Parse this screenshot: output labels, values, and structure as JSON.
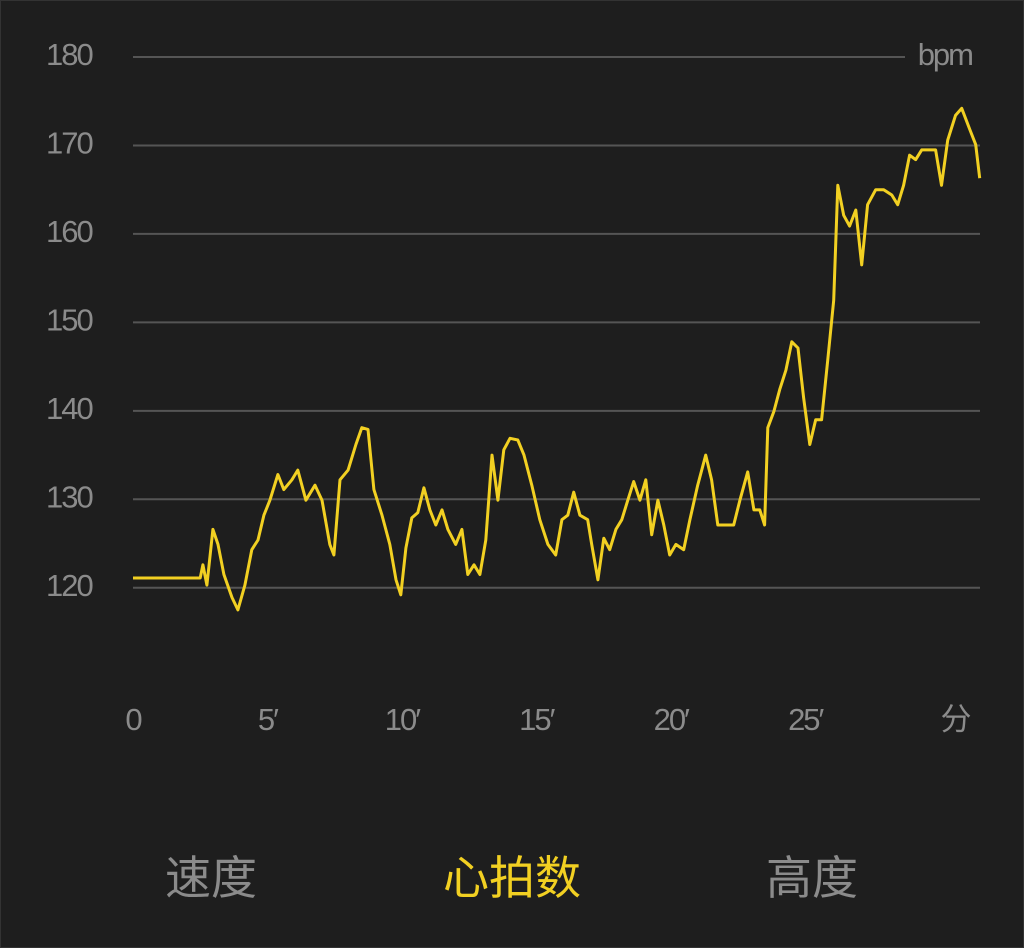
{
  "chart_data": {
    "type": "line",
    "color": "#f2d022",
    "y_label": "bpm",
    "x_label": "分",
    "x": [
      0,
      2.5,
      2.6,
      2.75,
      2.97,
      3.16,
      3.38,
      3.68,
      3.9,
      4.16,
      4.42,
      4.65,
      4.87,
      5.09,
      5.39,
      5.61,
      5.91,
      6.13,
      6.43,
      6.77,
      7.03,
      7.32,
      7.47,
      7.7,
      8.0,
      8.29,
      8.51,
      8.74,
      8.96,
      9.26,
      9.55,
      9.78,
      9.96,
      10.15,
      10.37,
      10.59,
      10.82,
      11.04,
      11.26,
      11.49,
      11.71,
      12.0,
      12.23,
      12.45,
      12.68,
      12.9,
      13.12,
      13.35,
      13.57,
      13.79,
      14.02,
      14.31,
      14.54,
      14.83,
      15.13,
      15.43,
      15.72,
      15.95,
      16.17,
      16.39,
      16.62,
      16.91,
      17.06,
      17.29,
      17.51,
      17.73,
      17.96,
      18.18,
      18.4,
      18.62,
      18.85,
      19.07,
      19.29,
      19.52,
      19.74,
      19.96,
      20.19,
      20.48,
      20.71,
      21.0,
      21.3,
      21.52,
      21.75,
      22.04,
      22.34,
      22.57,
      22.86,
      23.09,
      23.31,
      23.49,
      23.61,
      23.83,
      24.05,
      24.28,
      24.5,
      24.73,
      24.94,
      25.17,
      25.39,
      25.61,
      25.84,
      26.06,
      26.21,
      26.43,
      26.65,
      26.88,
      27.1,
      27.32,
      27.62,
      27.92,
      28.22,
      28.44,
      28.66,
      28.88,
      29.11,
      29.33,
      29.63,
      29.85,
      30.07,
      30.3,
      30.59,
      30.82,
      31.12,
      31.34,
      31.49
    ],
    "values": [
      121.1,
      121.1,
      122.6,
      120.3,
      126.6,
      124.9,
      121.5,
      118.9,
      117.5,
      120.3,
      124.3,
      125.4,
      128.2,
      129.9,
      132.8,
      131.1,
      132.2,
      133.3,
      129.9,
      131.6,
      129.9,
      124.9,
      123.7,
      132.2,
      133.3,
      136.2,
      138.1,
      137.9,
      131.1,
      128.2,
      124.9,
      120.9,
      119.2,
      124.5,
      127.9,
      128.5,
      131.3,
      128.8,
      127.1,
      128.8,
      126.6,
      124.9,
      126.6,
      121.5,
      122.6,
      121.5,
      125.4,
      135.0,
      129.9,
      135.6,
      136.9,
      136.7,
      135.0,
      131.6,
      127.7,
      124.9,
      123.7,
      127.7,
      128.2,
      130.8,
      128.2,
      127.7,
      124.9,
      120.9,
      125.6,
      124.3,
      126.6,
      127.7,
      129.9,
      132.0,
      129.9,
      132.2,
      126.0,
      129.9,
      127.1,
      123.7,
      124.9,
      124.3,
      127.7,
      131.6,
      135.0,
      132.2,
      127.1,
      127.1,
      127.1,
      129.9,
      133.1,
      128.8,
      128.8,
      127.1,
      138.1,
      139.9,
      142.4,
      144.6,
      147.8,
      147.1,
      141.5,
      136.2,
      139.0,
      139.0,
      145.8,
      152.5,
      165.5,
      162.1,
      160.9,
      162.7,
      156.5,
      163.3,
      165.0,
      165.0,
      164.4,
      163.3,
      165.5,
      168.9,
      168.4,
      169.5,
      169.5,
      169.5,
      165.5,
      170.6,
      173.4,
      174.2,
      171.8,
      170.1,
      166.3
    ],
    "xlim": [
      0,
      31.5
    ],
    "ylim": [
      115,
      180
    ],
    "xticks": [
      0,
      {
        "value": 5,
        "label": "5′"
      },
      {
        "value": 10,
        "label": "10′"
      },
      {
        "value": 15,
        "label": "15′"
      },
      {
        "value": 20,
        "label": "20′"
      },
      {
        "value": 25,
        "label": "25′"
      }
    ],
    "yticks": [
      120,
      130,
      140,
      150,
      160,
      170,
      180
    ],
    "grid": true
  },
  "tabs": {
    "items": [
      "速度",
      "心拍数",
      "高度"
    ],
    "active": 1
  }
}
